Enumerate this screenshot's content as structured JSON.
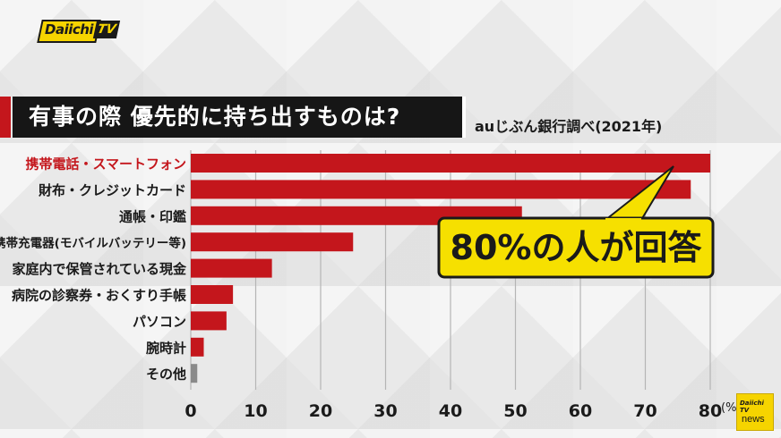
{
  "brand": {
    "logo_text": "Daiichi",
    "logo_tv": "TV",
    "corner_logo": "Daiichi TV",
    "corner_news": "news"
  },
  "header": {
    "title": "有事の際 優先的に持ち出すものは?",
    "source": "auじぶん銀行調べ(2021年)"
  },
  "callout": {
    "text": "80%の人が回答"
  },
  "colors": {
    "bar": "#c4161c",
    "bar_other": "#8a8a8a",
    "highlight_label": "#c4161c",
    "callout_fill": "#f6e000"
  },
  "chart_data": {
    "type": "bar",
    "orientation": "horizontal",
    "title": "有事の際 優先的に持ち出すものは?",
    "categories": [
      "携帯電話・スマートフォン",
      "財布・クレジットカード",
      "通帳・印鑑",
      "携帯充電器(モバイルバッテリー等)",
      "家庭内で保管されている現金",
      "病院の診察券・おくすり手帳",
      "パソコン",
      "腕時計",
      "その他"
    ],
    "values": [
      80,
      77,
      51,
      25,
      12.5,
      6.5,
      5.5,
      2,
      1
    ],
    "highlighted_category": "携帯電話・スマートフォン",
    "xlim": [
      0,
      80
    ],
    "xticks": [
      0,
      10,
      20,
      30,
      40,
      50,
      60,
      70,
      80
    ],
    "xunit": "(%)",
    "grid": true
  }
}
